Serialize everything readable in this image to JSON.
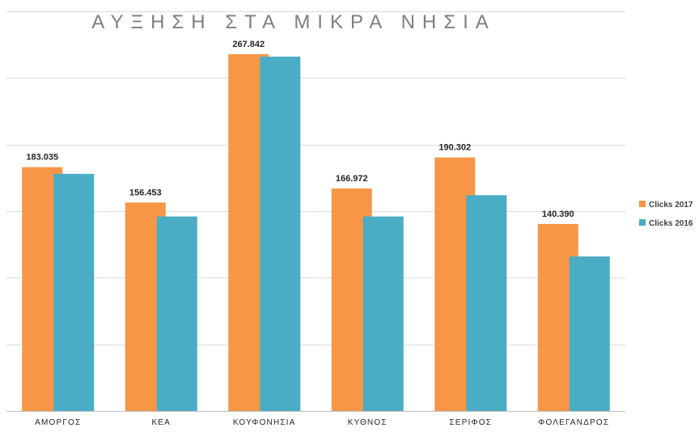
{
  "chart_data": {
    "type": "bar",
    "title": "ΑΥΞΗΣΗ ΣΤΑ ΜΙΚΡΑ ΝΗΣΙΑ",
    "categories": [
      "ΑΜΟΡΓΟΣ",
      "ΚΕΑ",
      "ΚΟΥΦΟΝΗΣΙΑ",
      "ΚΥΘΝΟΣ",
      "ΣΕΡΙΦΟΣ",
      "ΦΟΛΕΓΑΝΔΡΟΣ"
    ],
    "series": [
      {
        "name": "Clicks 2017",
        "color": "#f79646",
        "values": [
          183035,
          156453,
          267842,
          166972,
          190302,
          140390
        ],
        "labels": [
          "183.035",
          "156.453",
          "267.842",
          "166.972",
          "190.302",
          "140.390"
        ]
      },
      {
        "name": "Clicks 2016",
        "color": "#4bacc6",
        "values": [
          178000,
          146000,
          266000,
          146000,
          162000,
          116000
        ]
      }
    ],
    "xlabel": "",
    "ylabel": "",
    "ylim": [
      0,
      300000
    ],
    "grid": true,
    "legend": "right"
  }
}
